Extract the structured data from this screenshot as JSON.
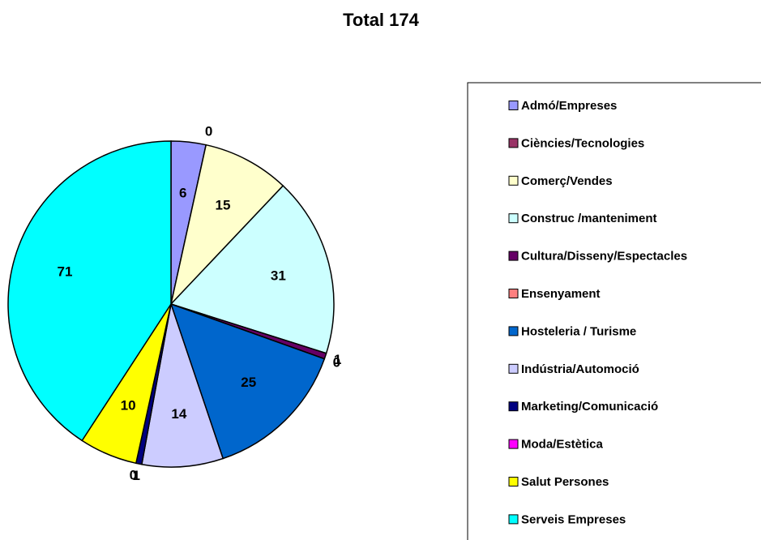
{
  "chart_data": {
    "type": "pie",
    "title": "Total 174",
    "categories": [
      "Admó/Empreses",
      "Ciències/Tecnologies",
      "Comerç/Vendes",
      "Construc /manteniment",
      "Cultura/Disseny/Espectacles",
      "Ensenyament",
      "Hosteleria / Turisme",
      "Indústria/Automoció",
      "Marketing/Comunicació",
      "Moda/Estètica",
      "Salut Persones",
      "Serveis Empreses"
    ],
    "values": [
      6,
      0,
      15,
      31,
      1,
      0,
      25,
      14,
      1,
      0,
      10,
      71
    ],
    "colors": [
      "#9999ff",
      "#993366",
      "#ffffcc",
      "#ccffff",
      "#660066",
      "#ff8080",
      "#0066cc",
      "#ccccff",
      "#000080",
      "#ff00ff",
      "#ffff00",
      "#00ffff"
    ],
    "legend": "right"
  }
}
